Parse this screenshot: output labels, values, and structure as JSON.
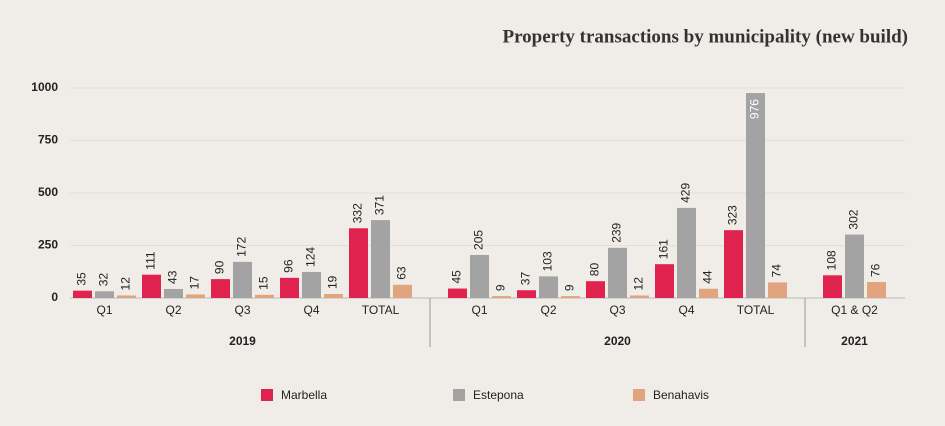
{
  "chart_data": {
    "type": "bar",
    "title": "Property transactions by municipality (new build)",
    "groups": [
      {
        "name": "2019",
        "categories": [
          "Q1",
          "Q2",
          "Q3",
          "Q4",
          "TOTAL"
        ]
      },
      {
        "name": "2020",
        "categories": [
          "Q1",
          "Q2",
          "Q3",
          "Q4",
          "TOTAL"
        ]
      },
      {
        "name": "2021",
        "categories": [
          "Q1 & Q2"
        ]
      }
    ],
    "series": [
      {
        "name": "Marbella",
        "color": "#e0234e",
        "values": [
          35,
          111,
          90,
          96,
          332,
          45,
          37,
          80,
          161,
          323,
          108
        ]
      },
      {
        "name": "Estepona",
        "color": "#a3a3a3",
        "values": [
          32,
          43,
          172,
          124,
          371,
          205,
          103,
          239,
          429,
          976,
          302
        ]
      },
      {
        "name": "Benahavis",
        "color": "#e0a47e",
        "values": [
          12,
          17,
          15,
          19,
          63,
          9,
          9,
          12,
          44,
          74,
          76
        ]
      }
    ],
    "ylim": [
      0,
      1000
    ],
    "yticks": [
      0,
      250,
      500,
      750,
      1000
    ],
    "grid": true,
    "legend": "bottom"
  }
}
